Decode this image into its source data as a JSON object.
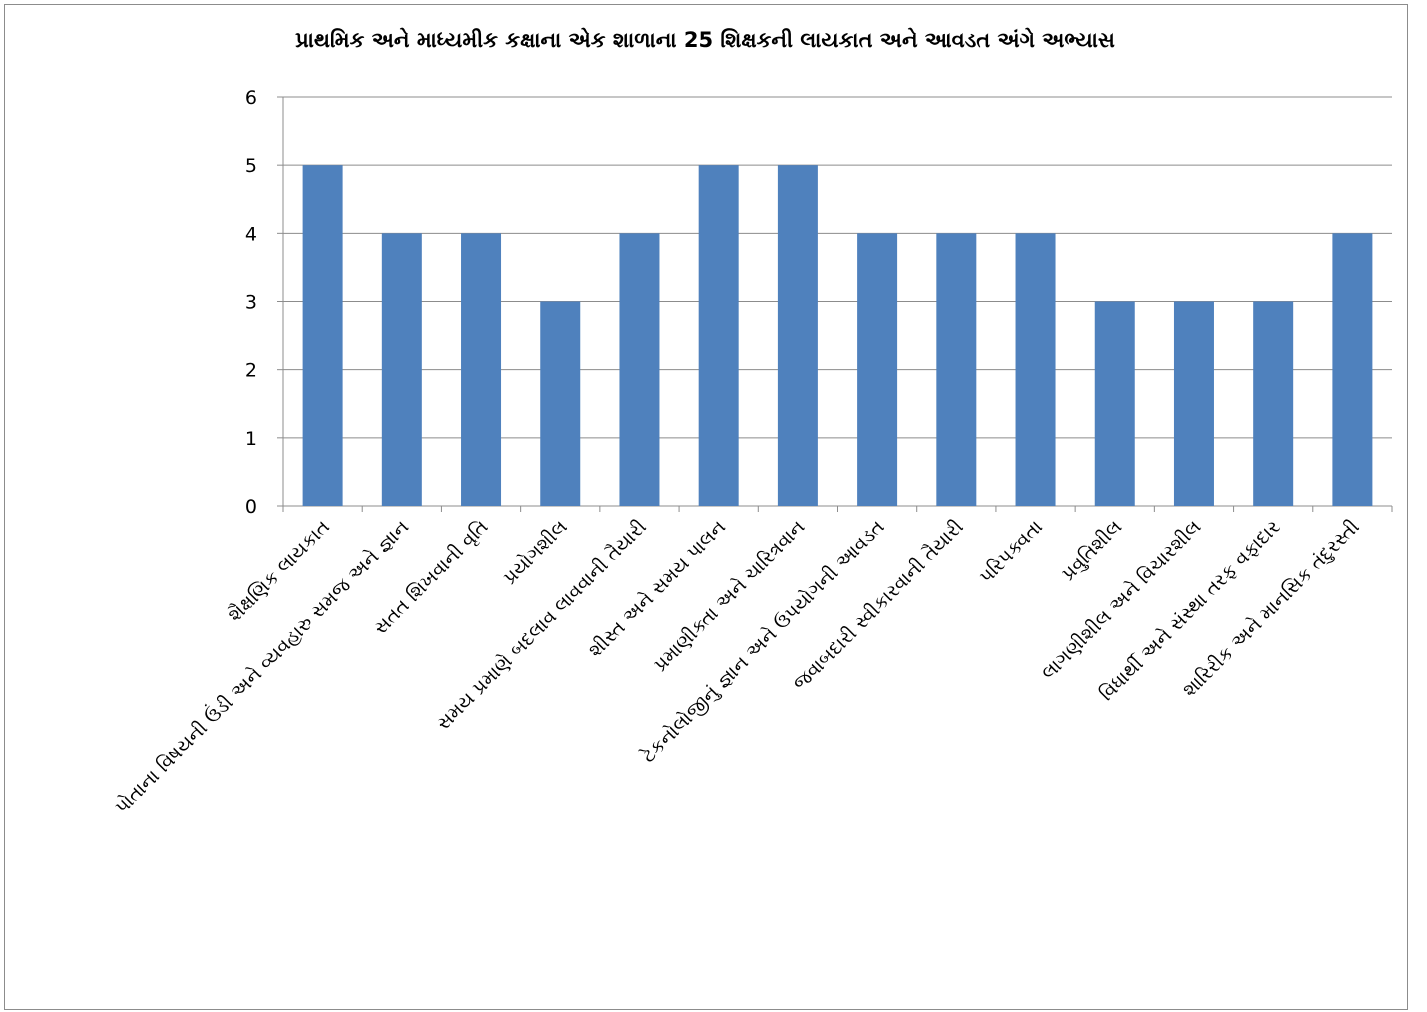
{
  "chart_data": {
    "type": "bar",
    "title": "પ્રાથમિક અને માધ્યમીક કક્ષાના એક શાળાના 25 શિક્ષકની લાયકાત અને આવડત અંગે  અભ્યાસ",
    "xlabel": "",
    "ylabel": "",
    "ylim": [
      0,
      6
    ],
    "yticks": [
      0,
      1,
      2,
      3,
      4,
      5,
      6
    ],
    "grid": true,
    "legend": "none",
    "bar_color": "#4f81bd",
    "categories": [
      "શૈક્ષણિક લાયકાત",
      "પોતાના વિષયની ઉંડી અને વ્યવહારુ સમજ અને જ્ઞાન",
      "સતત શિખવાની વૃતિ",
      "પ્રયોગશીલ",
      "સમય પ્રમાણે બદલાવ લાવવાની તૈયારી",
      "શીસ્ત અને સમય પાલન",
      "પ્રમાણીક્તા અને ચારિત્રવાન",
      "ટેકનોલોજીનું જ્ઞાન અને ઉપયોગની આવડત",
      "જવાબદારી સ્વીકારવાની તૈયારી",
      "પરિપક્વતા",
      "પ્રવુતિશીલ",
      "લાગણીશીલ અને વિચારશીલ",
      "વિધાર્થી અને સંસ્થા તરફ વફાદાર",
      "શારિરીક અને માનસિક તંદુરસ્તી"
    ],
    "values": [
      5,
      4,
      4,
      3,
      4,
      5,
      5,
      4,
      4,
      4,
      3,
      3,
      3,
      4
    ]
  }
}
